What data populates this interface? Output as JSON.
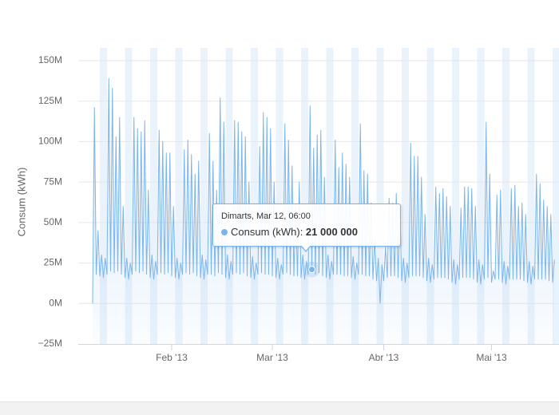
{
  "chart_data": {
    "type": "area",
    "ylabel": "Consum (kWh)",
    "ylim": [
      -25000000,
      150000000
    ],
    "yticks": [
      {
        "value": -25000000,
        "label": "−25M"
      },
      {
        "value": 0,
        "label": "0M"
      },
      {
        "value": 25000000,
        "label": "25M"
      },
      {
        "value": 50000000,
        "label": "50M"
      },
      {
        "value": 75000000,
        "label": "75M"
      },
      {
        "value": 100000000,
        "label": "100M"
      },
      {
        "value": 125000000,
        "label": "125M"
      },
      {
        "value": 150000000,
        "label": "150M"
      }
    ],
    "grid": true,
    "categories": [
      null,
      null,
      null,
      null,
      null,
      null,
      null,
      null,
      null,
      null,
      null,
      null,
      null,
      null,
      null,
      null,
      null,
      null,
      null,
      null,
      null,
      null,
      null,
      null,
      null,
      null,
      null,
      null,
      null,
      null,
      null,
      null,
      null,
      null,
      null,
      null,
      null,
      null,
      null,
      null,
      null,
      null,
      null,
      null,
      "Feb '13",
      null,
      null,
      null,
      null,
      null,
      null,
      null,
      null,
      null,
      null,
      null,
      null,
      null,
      null,
      null,
      null,
      null,
      null,
      null,
      null,
      null,
      null,
      null,
      null,
      null,
      null,
      null,
      null,
      null,
      null,
      null,
      null,
      null,
      null,
      null,
      null,
      null,
      null,
      null,
      null,
      null,
      null,
      null,
      null,
      null,
      null,
      null,
      null,
      null,
      null,
      null,
      null,
      null,
      null,
      null,
      "Mar '13",
      null,
      null,
      null,
      null,
      null,
      null,
      null,
      null,
      null,
      null,
      null,
      null,
      null,
      null,
      null,
      null,
      null,
      null,
      null,
      null,
      null,
      null,
      null,
      null,
      null,
      null,
      null,
      null,
      null,
      null,
      null,
      null,
      null,
      null,
      null,
      null,
      null,
      null,
      null,
      null,
      null,
      null,
      null,
      null,
      null,
      null,
      null,
      null,
      null,
      null,
      null,
      null,
      null,
      null,
      null,
      null,
      null,
      null,
      null,
      null,
      null,
      "Abr '13",
      null,
      null,
      null,
      null,
      null,
      null,
      null,
      null,
      null,
      null,
      null,
      null,
      null,
      null,
      null,
      null,
      null,
      null,
      null,
      null,
      null,
      null,
      null,
      null,
      null,
      null,
      null,
      null,
      null,
      null,
      null,
      null,
      null,
      null,
      null,
      null,
      null,
      null,
      null,
      null,
      null,
      null,
      null,
      null,
      null,
      null,
      null,
      null,
      null,
      null,
      null,
      null,
      null,
      null,
      null,
      null,
      null,
      null,
      null,
      "Mai '13",
      null,
      null,
      null,
      null,
      null,
      null,
      null,
      null,
      null,
      null,
      null,
      null,
      null,
      null,
      null,
      null,
      null,
      null,
      null,
      null,
      null,
      null,
      null,
      null,
      null,
      null,
      null,
      null,
      null,
      null,
      null,
      null,
      null,
      null,
      null
    ],
    "series": [
      {
        "name": "Consum (kWh)",
        "color": "#7cb5ec",
        "values": [
          0,
          121000000.0,
          18000000.0,
          45000000.0,
          17000000.0,
          30000000.0,
          16000000.0,
          28000000.0,
          18000000.0,
          139000000.0,
          20000000.0,
          133000000.0,
          19000000.0,
          103000000.0,
          20000000.0,
          115000000.0,
          18000000.0,
          60000000.0,
          16000000.0,
          28000000.0,
          15000000.0,
          25000000.0,
          18000000.0,
          115000000.0,
          20000000.0,
          108000000.0,
          19000000.0,
          106000000.0,
          20000000.0,
          113000000.0,
          18000000.0,
          70000000.0,
          16000000.0,
          30000000.0,
          15000000.0,
          26000000.0,
          18000000.0,
          107000000.0,
          19000000.0,
          100000000.0,
          18000000.0,
          93000000.0,
          19000000.0,
          93000000.0,
          17000000.0,
          60000000.0,
          16000000.0,
          28000000.0,
          15000000.0,
          25000000.0,
          18000000.0,
          95000000.0,
          19000000.0,
          101000000.0,
          18000000.0,
          92000000.0,
          19000000.0,
          80000000.0,
          17000000.0,
          88000000.0,
          16000000.0,
          30000000.0,
          15000000.0,
          27000000.0,
          18000000.0,
          105000000.0,
          18000000.0,
          88000000.0,
          17000000.0,
          70000000.0,
          19000000.0,
          127000000.0,
          18000000.0,
          112000000.0,
          16000000.0,
          30000000.0,
          15000000.0,
          26000000.0,
          18000000.0,
          113000000.0,
          19000000.0,
          112000000.0,
          18000000.0,
          106000000.0,
          19000000.0,
          103000000.0,
          17000000.0,
          75000000.0,
          16000000.0,
          29000000.0,
          15000000.0,
          25000000.0,
          18000000.0,
          97000000.0,
          19000000.0,
          118000000.0,
          18000000.0,
          115000000.0,
          18000000.0,
          108000000.0,
          17000000.0,
          75000000.0,
          16000000.0,
          28000000.0,
          15000000.0,
          24000000.0,
          18000000.0,
          111000000.0,
          19000000.0,
          101000000.0,
          18000000.0,
          85000000.0,
          17000000.0,
          60000000.0,
          17000000.0,
          75000000.0,
          16000000.0,
          30000000.0,
          15000000.0,
          26000000.0,
          18000000.0,
          122000000.0,
          21000000.0,
          96000000.0,
          18000000.0,
          104000000.0,
          19000000.0,
          107000000.0,
          17000000.0,
          78000000.0,
          16000000.0,
          30000000.0,
          15000000.0,
          26000000.0,
          18000000.0,
          101000000.0,
          18000000.0,
          84000000.0,
          18000000.0,
          93000000.0,
          17000000.0,
          86000000.0,
          17000000.0,
          78000000.0,
          16000000.0,
          29000000.0,
          15000000.0,
          25000000.0,
          18000000.0,
          111000000.0,
          18000000.0,
          82000000.0,
          17000000.0,
          80000000.0,
          17000000.0,
          62000000.0,
          15000000.0,
          40000000.0,
          14000000.0,
          28000000.0,
          0,
          24000000.0,
          14000000.0,
          35000000.0,
          16000000.0,
          65000000.0,
          17000000.0,
          62000000.0,
          17000000.0,
          68000000.0,
          16000000.0,
          60000000.0,
          14000000.0,
          28000000.0,
          13000000.0,
          25000000.0,
          16000000.0,
          99000000.0,
          17000000.0,
          91000000.0,
          17000000.0,
          91000000.0,
          17000000.0,
          78000000.0,
          16000000.0,
          55000000.0,
          14000000.0,
          28000000.0,
          13000000.0,
          24000000.0,
          15000000.0,
          72000000.0,
          16000000.0,
          68000000.0,
          16000000.0,
          71000000.0,
          16000000.0,
          66000000.0,
          15000000.0,
          60000000.0,
          13000000.0,
          27000000.0,
          12000000.0,
          24000000.0,
          15000000.0,
          59000000.0,
          16000000.0,
          72000000.0,
          16000000.0,
          72000000.0,
          16000000.0,
          71000000.0,
          15000000.0,
          60000000.0,
          13000000.0,
          27000000.0,
          12000000.0,
          24000000.0,
          15000000.0,
          112000000.0,
          16000000.0,
          80000000.0,
          13000000.0,
          20000000.0,
          15000000.0,
          67000000.0,
          15000000.0,
          70000000.0,
          13000000.0,
          26000000.0,
          12000000.0,
          23000000.0,
          15000000.0,
          71000000.0,
          15000000.0,
          73000000.0,
          15000000.0,
          60000000.0,
          15000000.0,
          62000000.0,
          14000000.0,
          55000000.0,
          13000000.0,
          26000000.0,
          12000000.0,
          23000000.0,
          15000000.0,
          80000000.0,
          15000000.0,
          74000000.0,
          15000000.0,
          64000000.0,
          15000000.0,
          60000000.0,
          14000000.0,
          55000000.0,
          13000000.0,
          27000000.0
        ]
      }
    ],
    "tooltip": {
      "header": "Dimarts, Mar 12, 06:00",
      "value": 21000000,
      "value_label": "21 000 000"
    }
  }
}
